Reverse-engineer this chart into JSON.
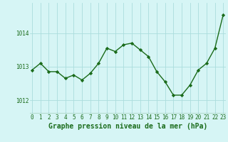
{
  "x": [
    0,
    1,
    2,
    3,
    4,
    5,
    6,
    7,
    8,
    9,
    10,
    11,
    12,
    13,
    14,
    15,
    16,
    17,
    18,
    19,
    20,
    21,
    22,
    23
  ],
  "y": [
    1012.9,
    1013.1,
    1012.85,
    1012.85,
    1012.65,
    1012.75,
    1012.6,
    1012.8,
    1013.1,
    1013.55,
    1013.45,
    1013.65,
    1013.7,
    1013.5,
    1013.3,
    1012.85,
    1012.55,
    1012.15,
    1012.15,
    1012.45,
    1012.9,
    1013.1,
    1013.55,
    1014.55
  ],
  "line_color": "#1a6b1a",
  "marker": "D",
  "marker_size": 2.2,
  "line_width": 1.0,
  "bg_color": "#d6f5f5",
  "grid_color": "#aadddd",
  "xlabel": "Graphe pression niveau de la mer (hPa)",
  "xlabel_color": "#1a6b1a",
  "xlabel_fontsize": 7,
  "tick_color": "#1a6b1a",
  "tick_fontsize": 5.5,
  "yticks": [
    1012,
    1013,
    1014
  ],
  "ylim": [
    1011.6,
    1014.9
  ],
  "xlim": [
    -0.3,
    23.3
  ]
}
